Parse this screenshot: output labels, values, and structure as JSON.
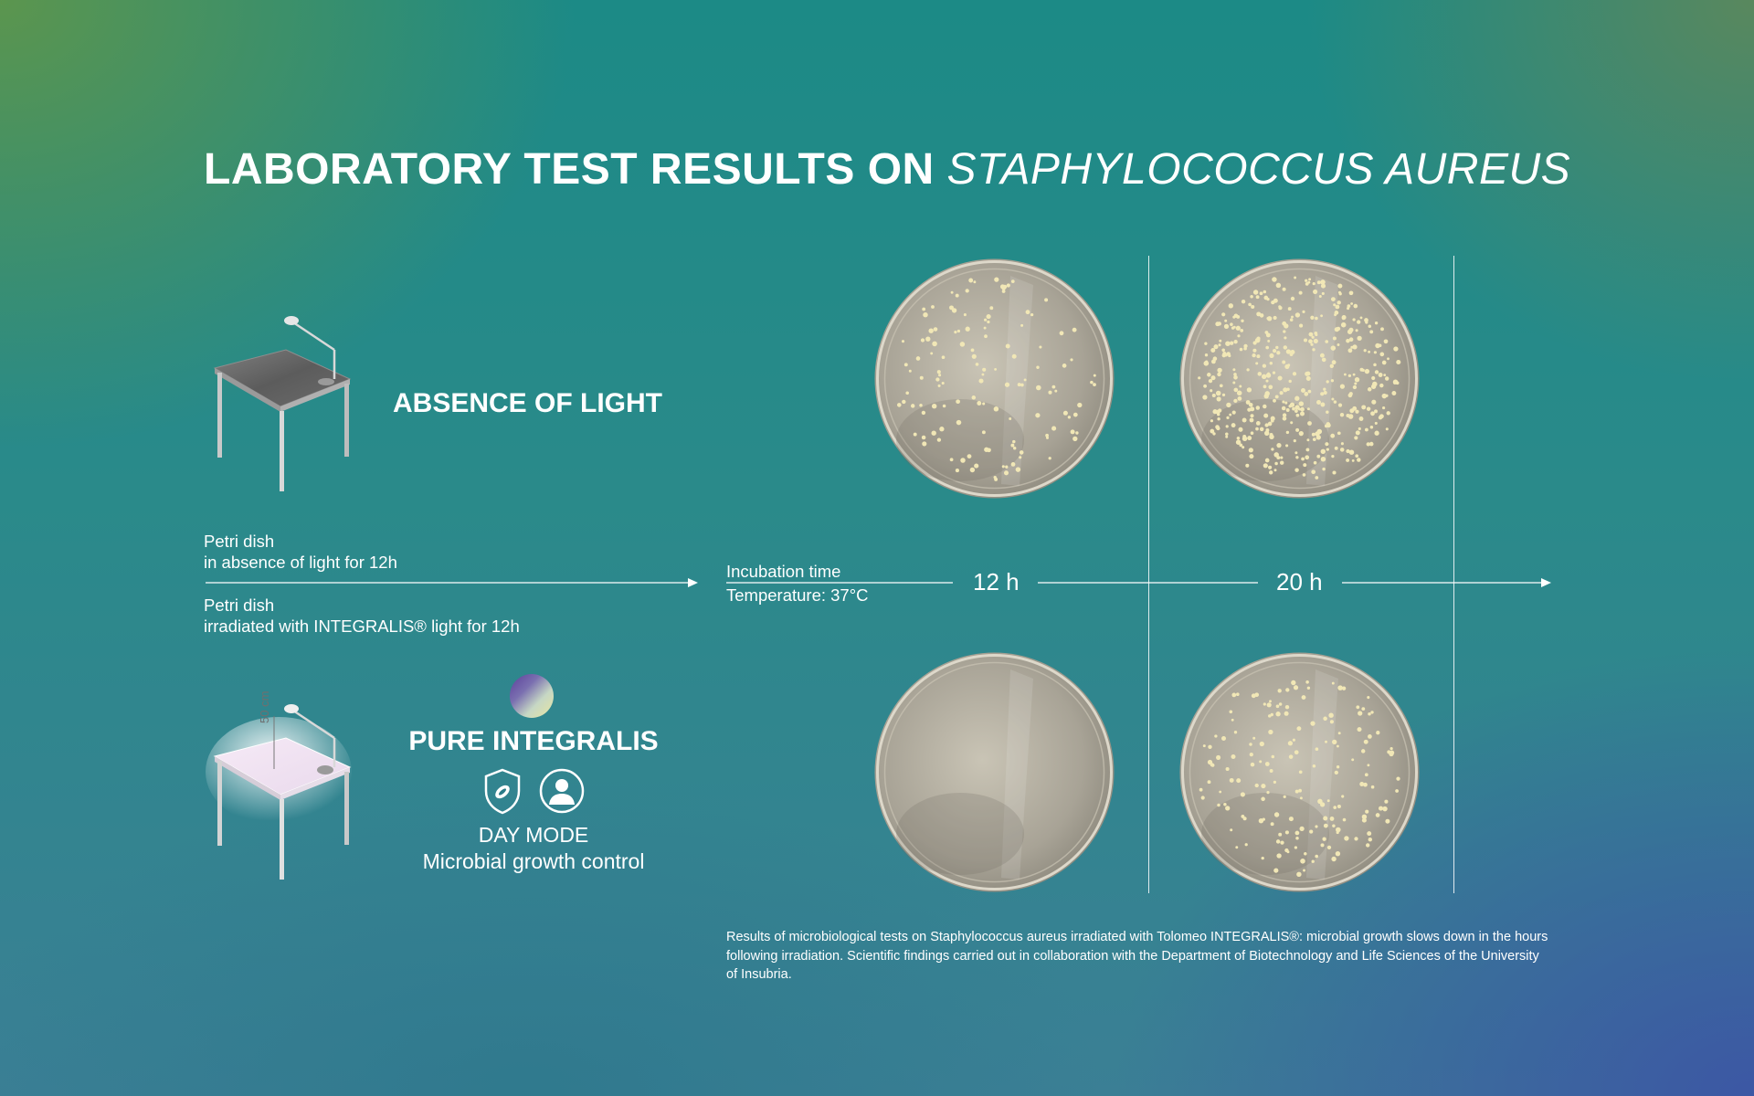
{
  "title": {
    "main": "LABORATORY TEST RESULTS ON ",
    "species": "STAPHYLOCOCCUS AUREUS"
  },
  "absence": {
    "label": "ABSENCE OF LIGHT",
    "icon": "desk-lamp-off-icon"
  },
  "pure": {
    "label": "PURE INTEGRALIS",
    "distance": "50 cm",
    "icon": "desk-lamp-on-icon",
    "swatch_icon": "integralis-gradient-swatch",
    "mode_icons": [
      "microbe-shield-icon",
      "person-icon"
    ],
    "mode": "DAY MODE",
    "mode_desc": "Microbial growth control"
  },
  "legend": {
    "top_line1": "Petri dish",
    "top_line2": "in absence of light for 12h",
    "bottom_line1": "Petri dish",
    "bottom_line2": "irradiated with INTEGRALIS® light for 12h"
  },
  "incubation": {
    "line1": "Incubation time",
    "line2": "Temperature: 37°C"
  },
  "timepoints": [
    "12 h",
    "20 h"
  ],
  "colony_density": {
    "absence": [
      "moderate",
      "high"
    ],
    "integralis": [
      "none",
      "moderate"
    ]
  },
  "caption": "Results of microbiological tests on Staphylococcus aureus irradiated with Tolomeo INTEGRALIS®: microbial growth slows down in the hours following irradiation. Scientific findings carried out in collaboration with the Department of Biotechnology and Life Sciences of the University of Insubria.",
  "colors": {
    "colony": "#f1e7b6",
    "agar": "#bdb7a6",
    "text": "#ffffff"
  }
}
